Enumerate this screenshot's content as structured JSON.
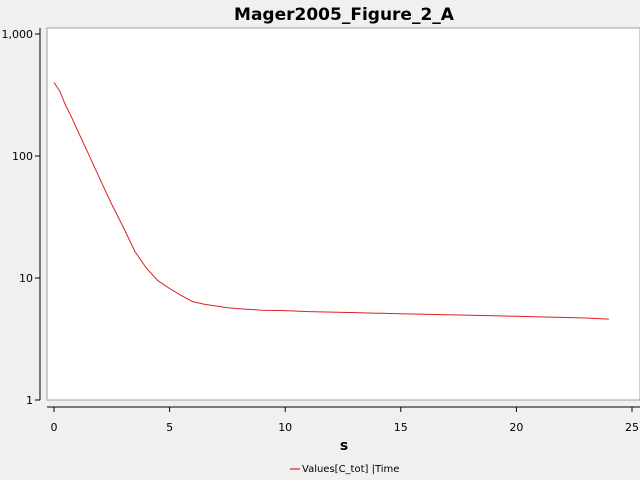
{
  "chart_data": {
    "type": "line",
    "title": "Mager2005_Figure_2_A",
    "xlabel": "s",
    "ylabel": "",
    "xlim": [
      0,
      25
    ],
    "ylim": [
      1,
      1000
    ],
    "yscale": "log",
    "x_ticks": [
      0,
      5,
      10,
      15,
      20,
      25
    ],
    "x_tick_labels": [
      "0",
      "5",
      "10",
      "15",
      "20",
      "25"
    ],
    "y_ticks": [
      1,
      10,
      100,
      1000
    ],
    "y_tick_labels": [
      "1",
      "10",
      "100",
      "1,000"
    ],
    "grid": false,
    "legend_position": "bottom-center",
    "series": [
      {
        "name": "Values[C_tot] |Time",
        "color": "#e02020",
        "x": [
          0,
          0.25,
          0.5,
          0.75,
          1,
          1.5,
          2,
          2.5,
          3,
          3.5,
          4,
          4.5,
          5,
          5.5,
          6,
          6.5,
          7,
          7.5,
          8,
          9,
          10,
          11,
          12,
          13,
          14,
          15,
          16,
          17,
          18,
          19,
          20,
          21,
          22,
          23,
          24
        ],
        "y": [
          400,
          340,
          260,
          210,
          165,
          103,
          64,
          40,
          26,
          16.5,
          12,
          9.5,
          8.2,
          7.2,
          6.4,
          6.1,
          5.9,
          5.7,
          5.6,
          5.45,
          5.4,
          5.3,
          5.25,
          5.2,
          5.15,
          5.1,
          5.05,
          5.0,
          4.95,
          4.9,
          4.85,
          4.8,
          4.75,
          4.7,
          4.6
        ]
      }
    ]
  }
}
